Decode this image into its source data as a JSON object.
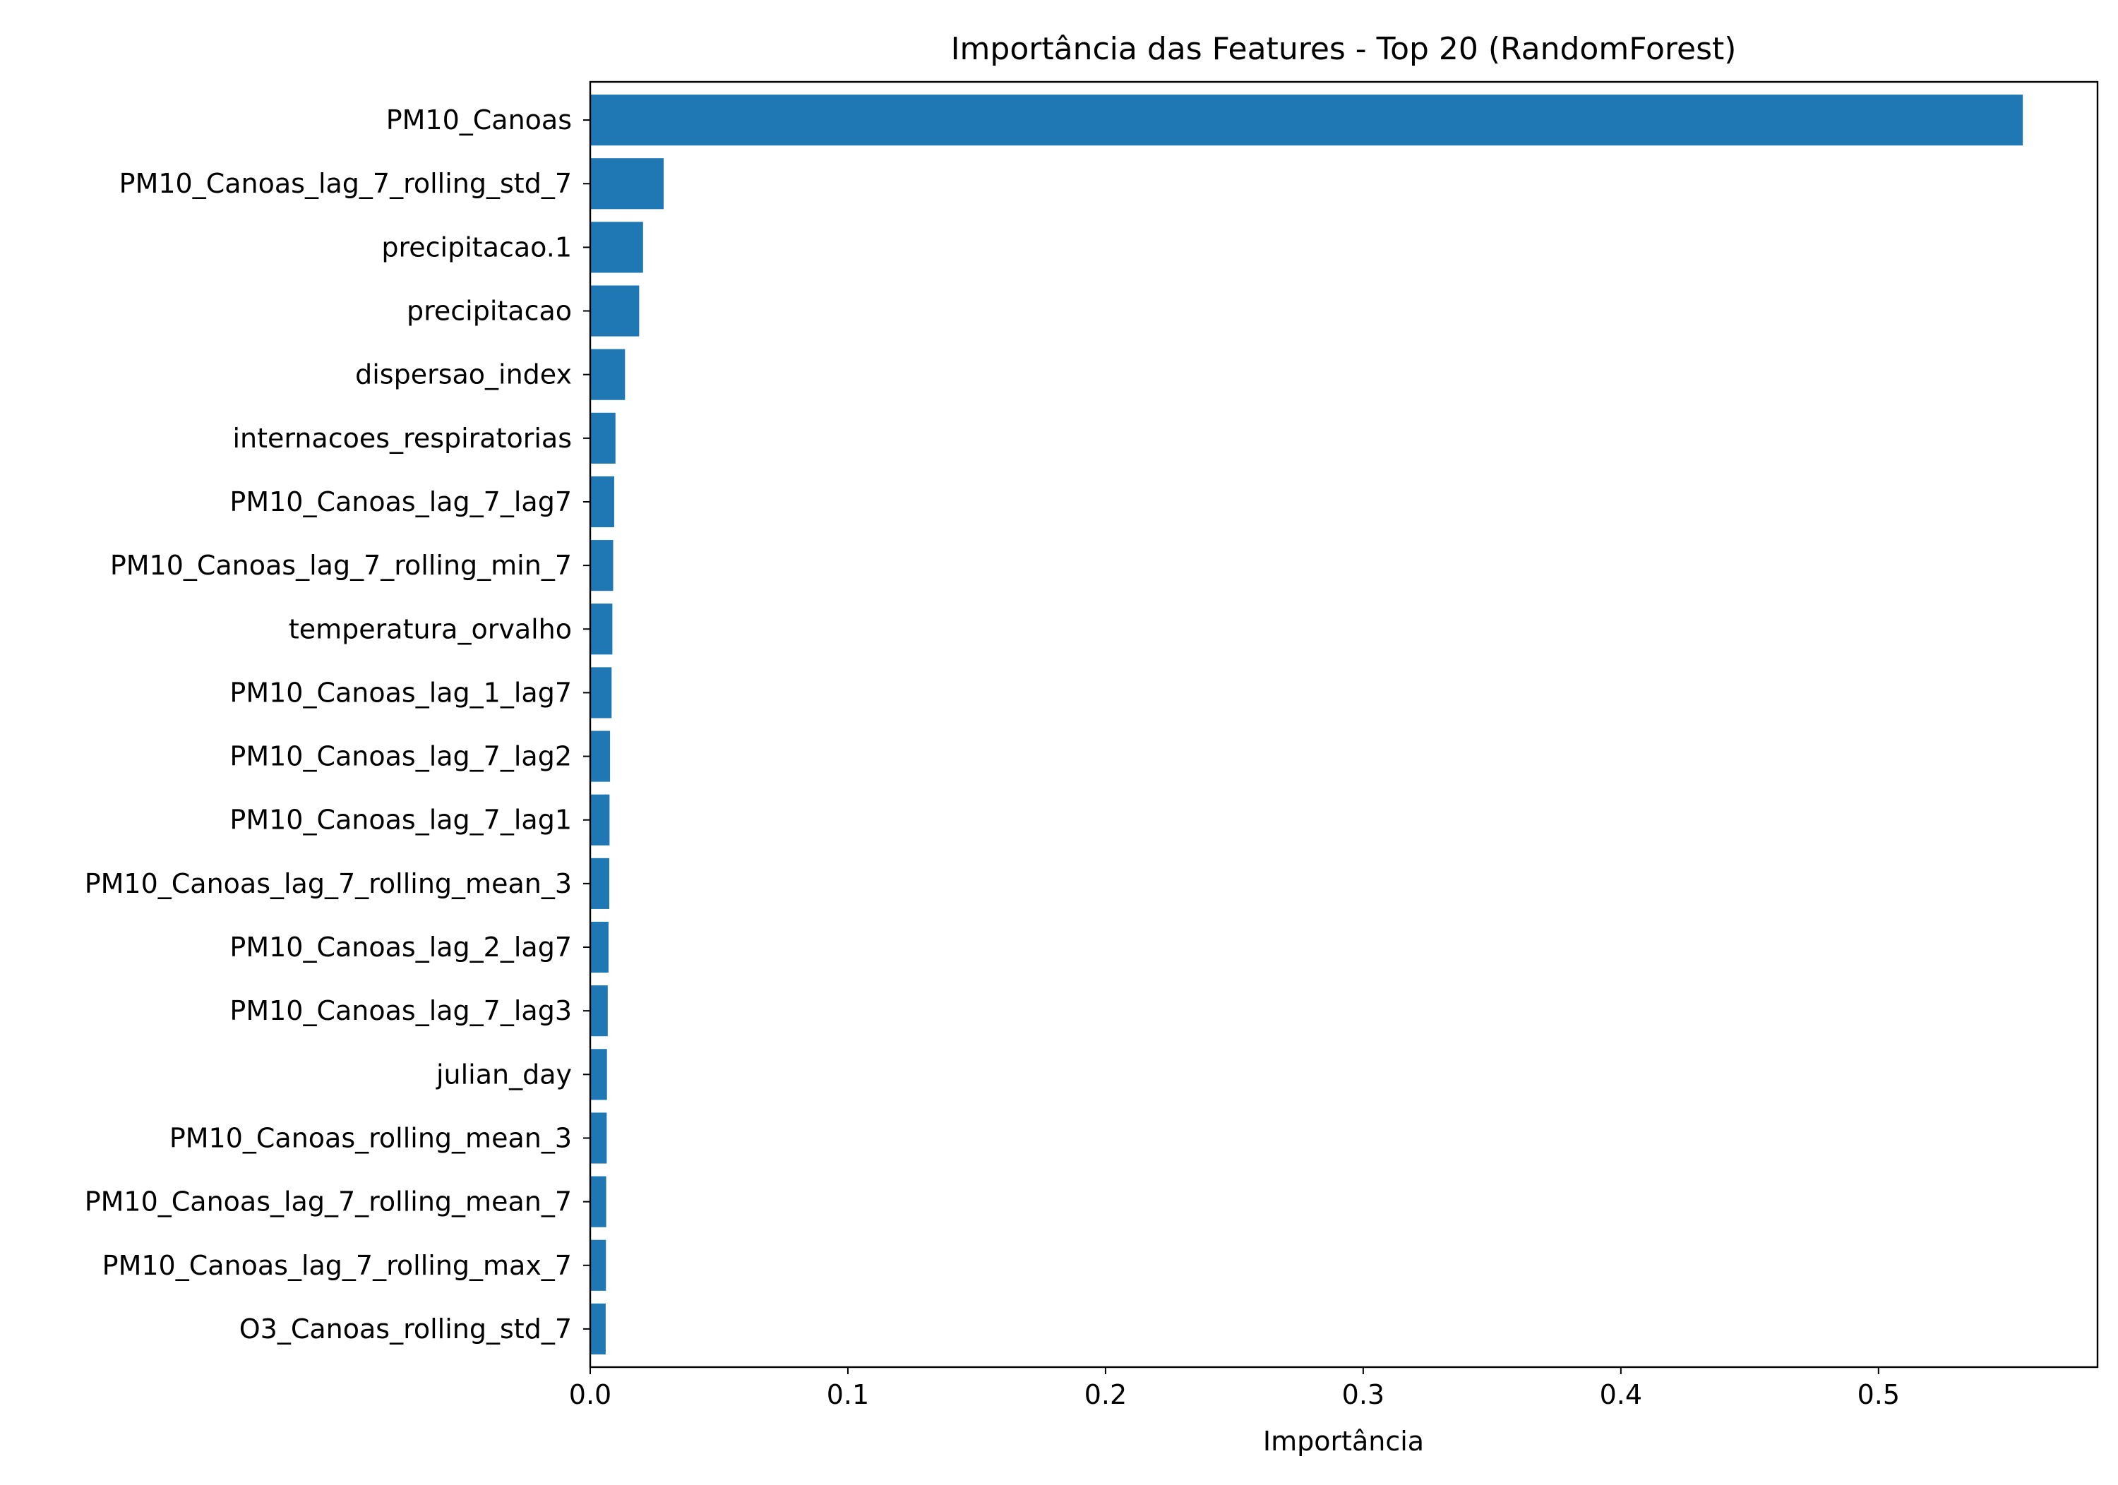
{
  "chart_data": {
    "type": "bar",
    "orientation": "horizontal",
    "title": "Importância das Features - Top 20 (RandomForest)",
    "xlabel": "Importância",
    "ylabel": "",
    "xlim": [
      0.0,
      0.585
    ],
    "xticks": [
      0.0,
      0.1,
      0.2,
      0.3,
      0.4,
      0.5
    ],
    "xtick_labels": [
      "0.0",
      "0.1",
      "0.2",
      "0.3",
      "0.4",
      "0.5"
    ],
    "grid": false,
    "bar_color": "#1f77b4",
    "categories": [
      "PM10_Canoas",
      "PM10_Canoas_lag_7_rolling_std_7",
      "precipitacao.1",
      "precipitacao",
      "dispersao_index",
      "internacoes_respiratorias",
      "PM10_Canoas_lag_7_lag7",
      "PM10_Canoas_lag_7_rolling_min_7",
      "temperatura_orvalho",
      "PM10_Canoas_lag_1_lag7",
      "PM10_Canoas_lag_7_lag2",
      "PM10_Canoas_lag_7_lag1",
      "PM10_Canoas_lag_7_rolling_mean_3",
      "PM10_Canoas_lag_2_lag7",
      "PM10_Canoas_lag_7_lag3",
      "julian_day",
      "PM10_Canoas_rolling_mean_3",
      "PM10_Canoas_lag_7_rolling_mean_7",
      "PM10_Canoas_lag_7_rolling_max_7",
      "O3_Canoas_rolling_std_7"
    ],
    "values": [
      0.556,
      0.0285,
      0.0205,
      0.019,
      0.0135,
      0.0098,
      0.0093,
      0.0089,
      0.0086,
      0.0083,
      0.0077,
      0.0075,
      0.0074,
      0.0071,
      0.0068,
      0.0065,
      0.0064,
      0.0062,
      0.0061,
      0.006
    ]
  }
}
